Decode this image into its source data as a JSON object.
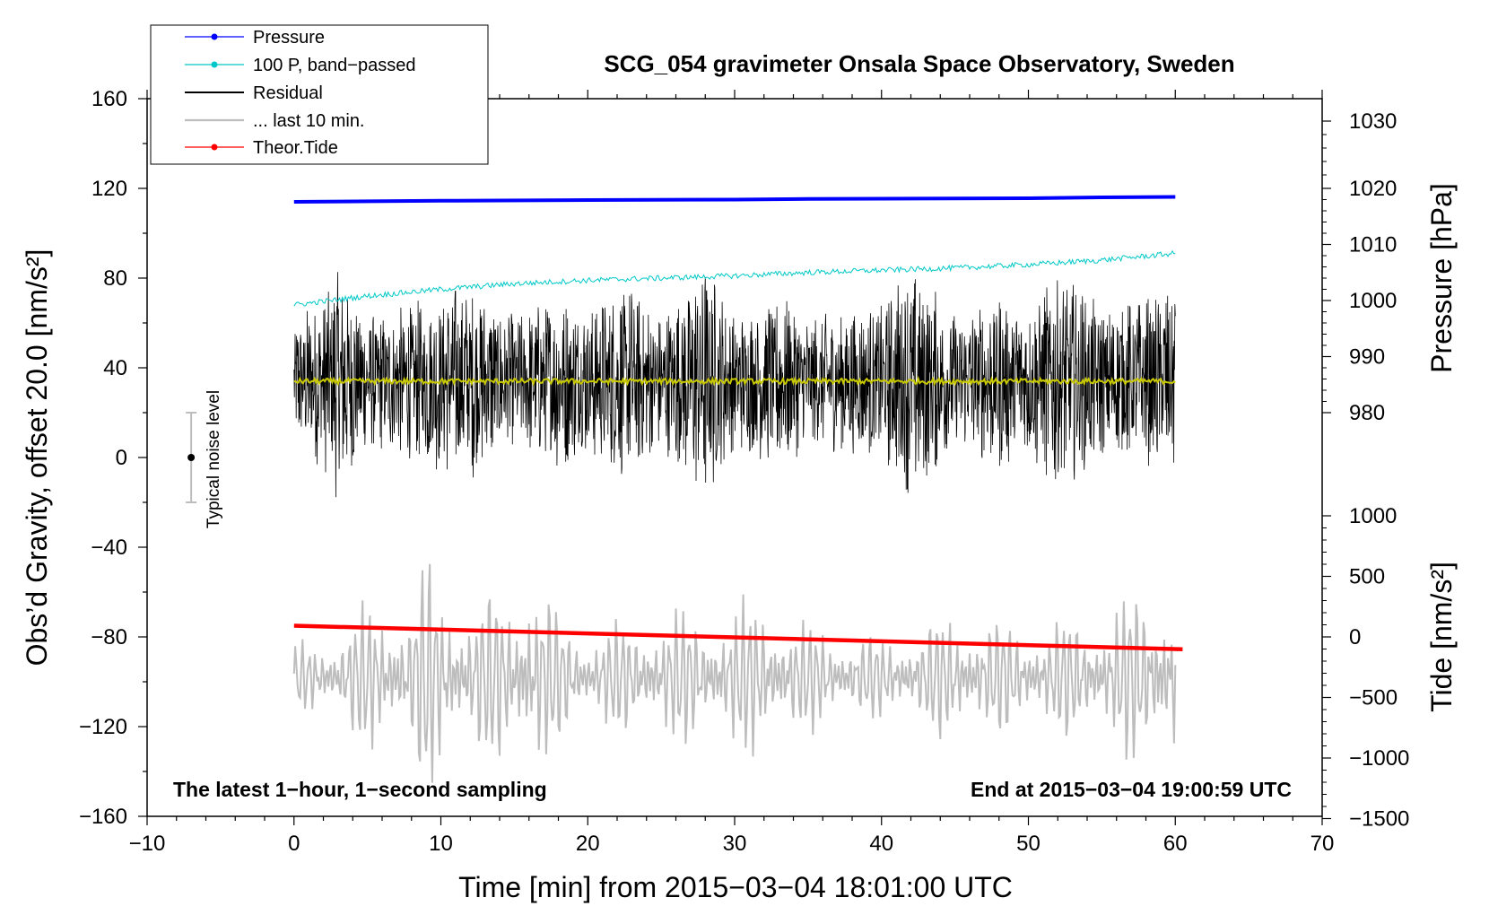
{
  "chart_data": {
    "type": "line",
    "title": "SCG_054 gravimeter Onsala Space Observatory, Sweden",
    "xlabel": "Time [min] from 2015−03−04 18:01:00 UTC",
    "ylabel_left": "Obs’d Gravity, offset 20.0 [nm/s²]",
    "ylabel_right_pressure": "Pressure [hPa]",
    "ylabel_right_tide": "Tide [nm/s²]",
    "xlim": [
      -10,
      70
    ],
    "ylim_left": [
      -160,
      160
    ],
    "xticks": [
      "−10",
      "0",
      "10",
      "20",
      "30",
      "40",
      "50",
      "60",
      "70"
    ],
    "yticks_left": [
      "160",
      "120",
      "80",
      "40",
      "0",
      "−40",
      "−80",
      "−120",
      "−160"
    ],
    "yticks_pressure": [
      "1030",
      "1020",
      "1010",
      "1000",
      "990",
      "980"
    ],
    "yticks_tide": [
      "1000",
      "500",
      "0",
      "−500",
      "−1000",
      "−1500"
    ],
    "pressure_axis": {
      "values": [
        1030,
        1020,
        1010,
        1000,
        990,
        980
      ],
      "left_value_at": [
        150,
        120,
        95,
        70,
        45,
        20
      ]
    },
    "tide_axis": {
      "values": [
        1000,
        500,
        0,
        -500,
        -1000,
        -1500
      ],
      "left_value_at": [
        -26,
        -53,
        -80,
        -107,
        -134,
        -161
      ]
    },
    "legend": [
      {
        "label": "Pressure",
        "color": "#0000ff",
        "marker": true
      },
      {
        "label": "100 P, band−passed",
        "color": "#00c8c8",
        "marker": true
      },
      {
        "label": "Residual",
        "color": "#000000",
        "marker": false
      },
      {
        "label": "... last 10 min.",
        "color": "#bdbdbd",
        "marker": false
      },
      {
        "label": "Theor.Tide",
        "color": "#ff0000",
        "marker": true
      }
    ],
    "series": [
      {
        "name": "Pressure",
        "color": "#0000ff",
        "x": [
          0,
          10,
          20,
          30,
          35,
          40,
          50,
          55,
          60
        ],
        "y": [
          114,
          114.5,
          114.8,
          115,
          115.3,
          115.4,
          115.6,
          116,
          116.2
        ]
      },
      {
        "name": "100 P, band−passed",
        "color": "#00c8c8",
        "x": [
          0,
          5,
          10,
          15,
          20,
          25,
          30,
          35,
          40,
          45,
          50,
          55,
          60
        ],
        "y": [
          68,
          72,
          75,
          77.5,
          79,
          80,
          81,
          82.5,
          83.5,
          84.5,
          86,
          88,
          91
        ]
      },
      {
        "name": "Residual",
        "color": "#000000",
        "center": 34,
        "amplitude_envelope": {
          "x": [
            0,
            2,
            3,
            5,
            8,
            10,
            12,
            15,
            18,
            20,
            23,
            25,
            28,
            30,
            33,
            35,
            40,
            42,
            45,
            48,
            50,
            52,
            55,
            58,
            60
          ],
          "y": [
            28,
            40,
            55,
            30,
            35,
            42,
            45,
            30,
            40,
            35,
            45,
            30,
            55,
            30,
            40,
            30,
            35,
            55,
            30,
            40,
            35,
            50,
            35,
            38,
            45
          ]
        }
      },
      {
        "name": "Residual mean",
        "color": "#c8c800",
        "center": 34
      },
      {
        "name": "... last 10 min.",
        "color": "#bdbdbd",
        "center": -98,
        "amplitude_envelope": {
          "x": [
            0,
            3,
            5,
            8,
            9,
            10,
            12,
            15,
            16,
            18,
            20,
            25,
            28,
            32,
            35,
            40,
            45,
            50,
            55,
            58,
            60
          ],
          "y": [
            12,
            18,
            28,
            30,
            48,
            35,
            30,
            35,
            45,
            25,
            18,
            25,
            25,
            30,
            20,
            15,
            25,
            20,
            25,
            35,
            40
          ]
        }
      },
      {
        "name": "Theor.Tide",
        "color": "#ff0000",
        "x": [
          0,
          60.5
        ],
        "y": [
          -75,
          -85.5
        ]
      }
    ],
    "noise_level": {
      "label": "Typical noise level",
      "x": -7,
      "y": 0,
      "err": 20
    },
    "annotation_left": "The latest 1−hour, 1−second sampling",
    "annotation_right": "End at 2015−03−04 19:00:59 UTC"
  }
}
